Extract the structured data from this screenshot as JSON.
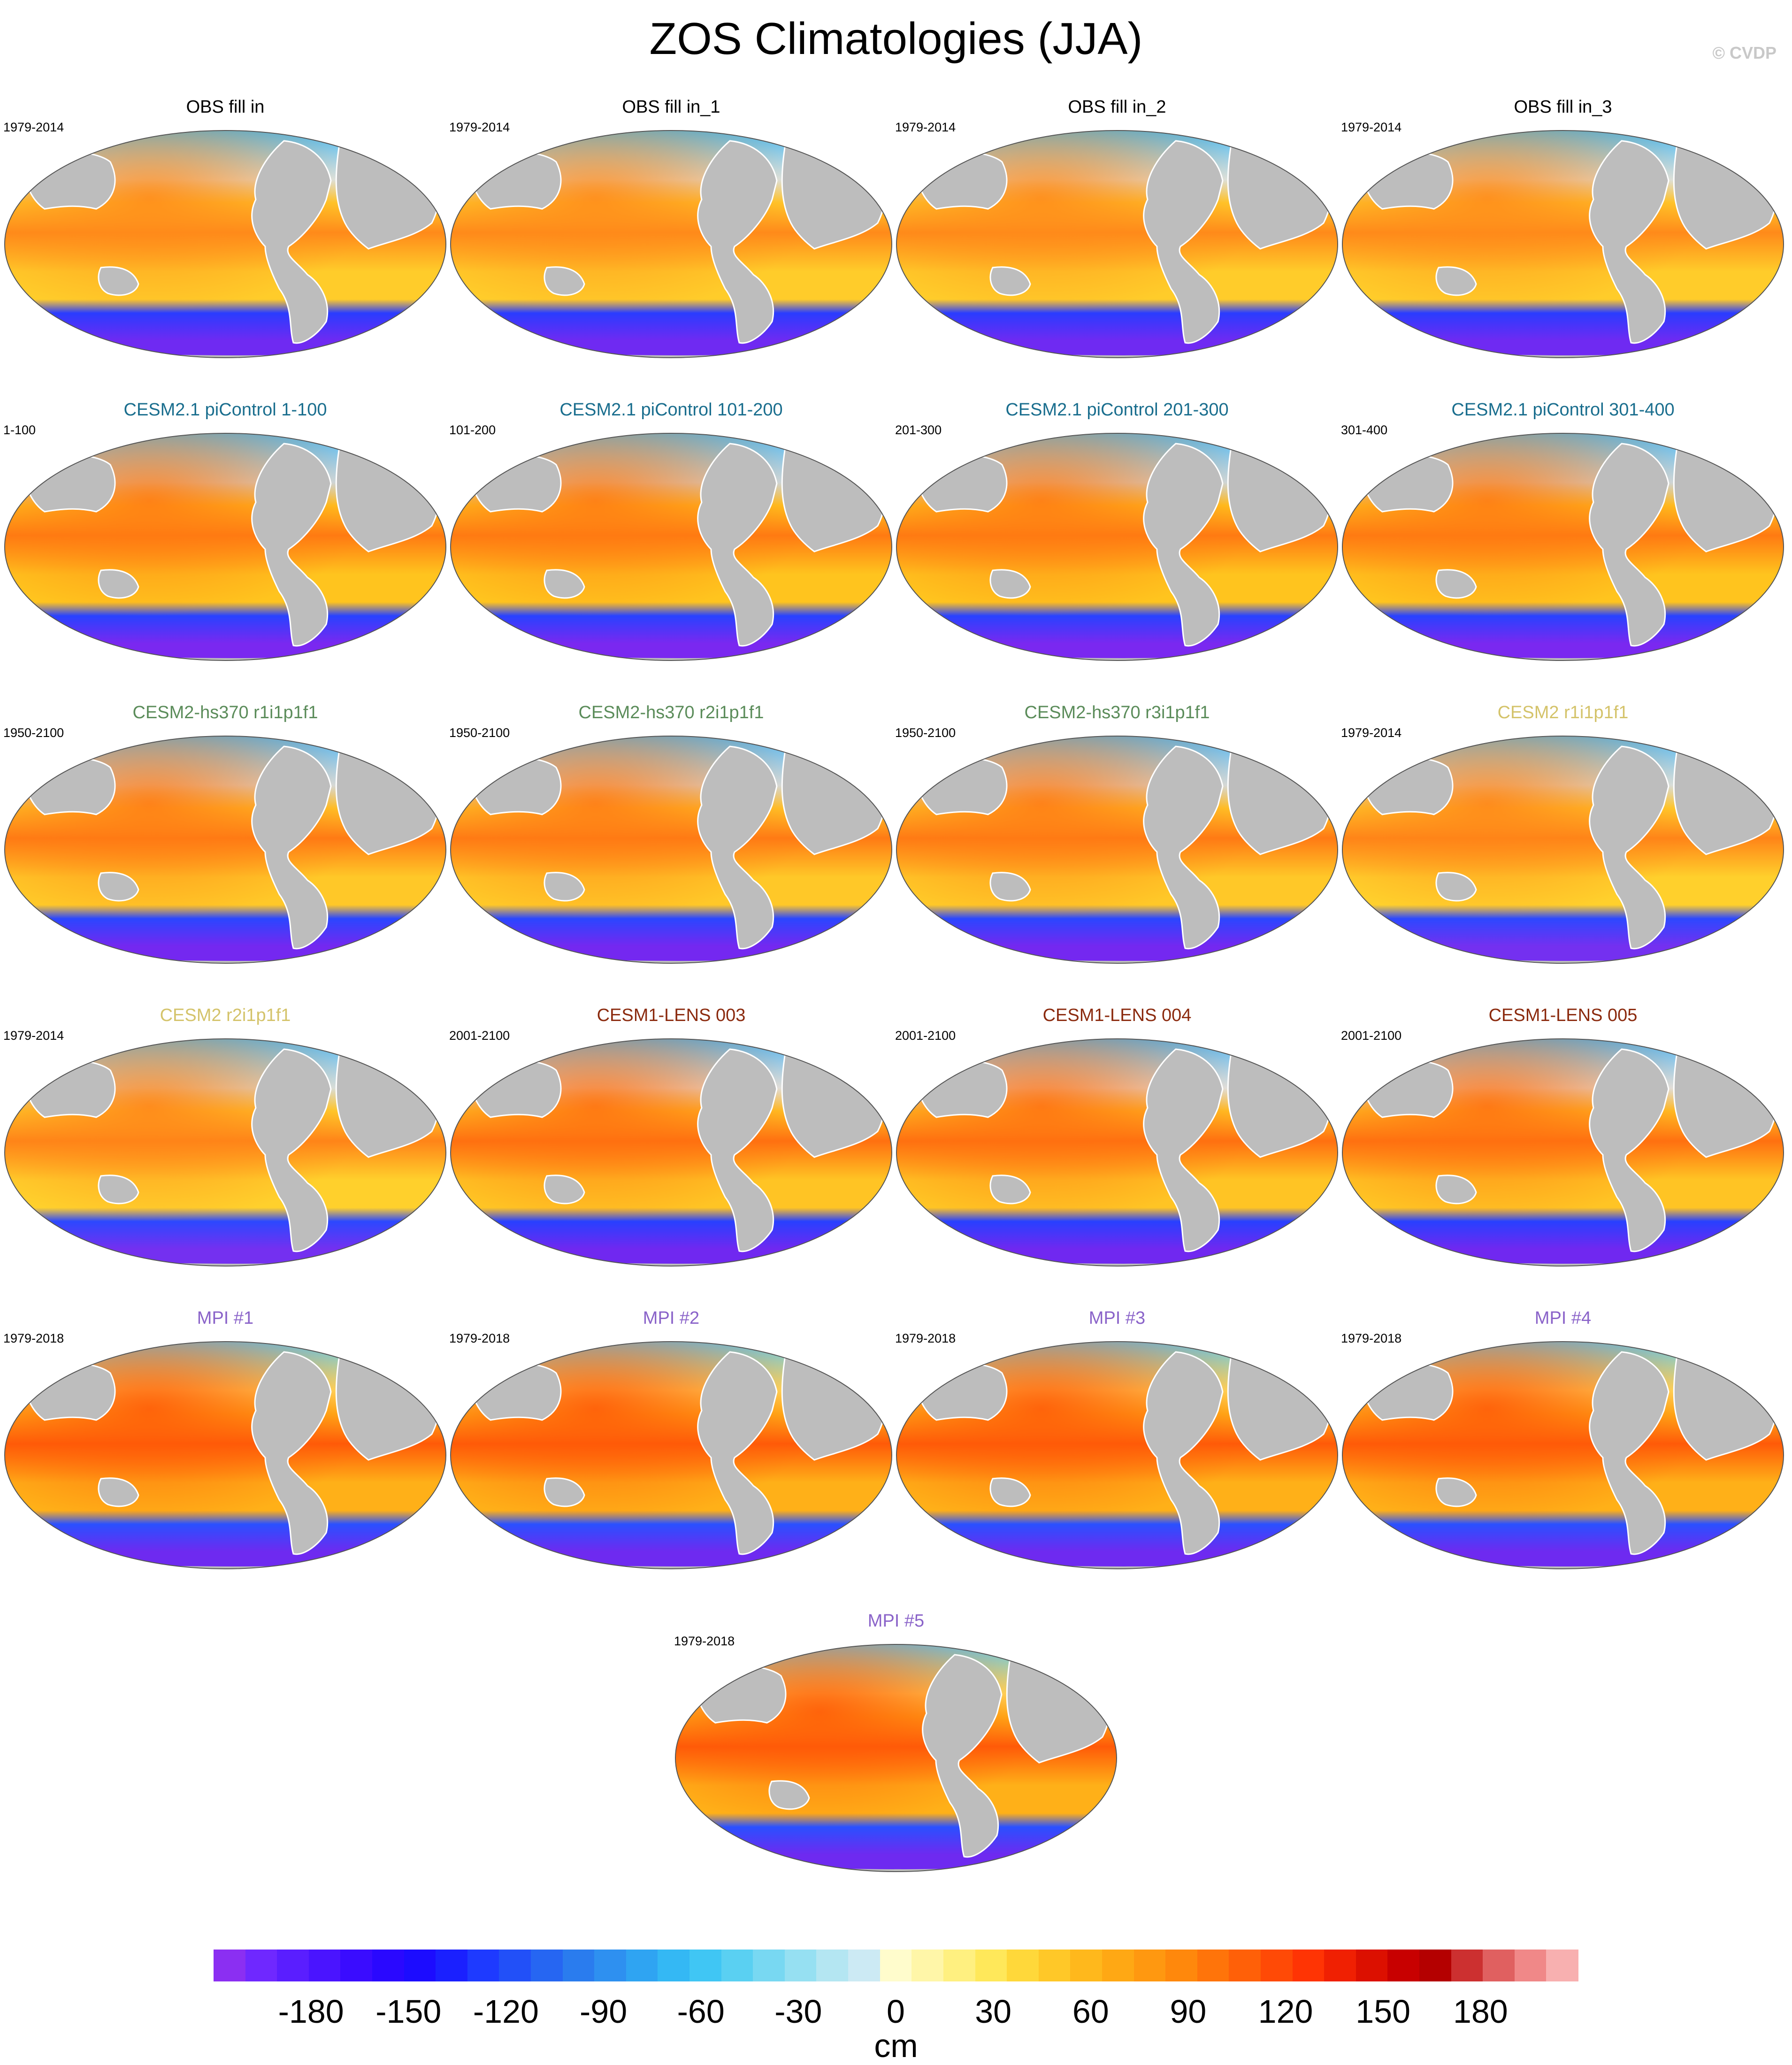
{
  "title": "ZOS Climatologies (JJA)",
  "watermark": "© CVDP",
  "panels": [
    {
      "title": "OBS fill in",
      "period": "1979-2014",
      "title_color": "#000000",
      "variant": "obs"
    },
    {
      "title": "OBS fill in_1",
      "period": "1979-2014",
      "title_color": "#000000",
      "variant": "obs"
    },
    {
      "title": "OBS fill in_2",
      "period": "1979-2014",
      "title_color": "#000000",
      "variant": "obs"
    },
    {
      "title": "OBS fill in_3",
      "period": "1979-2014",
      "title_color": "#000000",
      "variant": "obs"
    },
    {
      "title": "CESM2.1 piControl 1-100",
      "period": "1-100",
      "title_color": "#1a6e8e",
      "variant": "pi"
    },
    {
      "title": "CESM2.1 piControl 101-200",
      "period": "101-200",
      "title_color": "#1a6e8e",
      "variant": "pi"
    },
    {
      "title": "CESM2.1 piControl 201-300",
      "period": "201-300",
      "title_color": "#1a6e8e",
      "variant": "pi"
    },
    {
      "title": "CESM2.1 piControl 301-400",
      "period": "301-400",
      "title_color": "#1a6e8e",
      "variant": "pi"
    },
    {
      "title": "CESM2-hs370 r1i1p1f1",
      "period": "1950-2100",
      "title_color": "#5b8c5a",
      "variant": "hs"
    },
    {
      "title": "CESM2-hs370 r2i1p1f1",
      "period": "1950-2100",
      "title_color": "#5b8c5a",
      "variant": "hs"
    },
    {
      "title": "CESM2-hs370 r3i1p1f1",
      "period": "1950-2100",
      "title_color": "#5b8c5a",
      "variant": "hs"
    },
    {
      "title": "CESM2 r1i1p1f1",
      "period": "1979-2014",
      "title_color": "#d4c36a",
      "variant": "cesm2"
    },
    {
      "title": "CESM2 r2i1p1f1",
      "period": "1979-2014",
      "title_color": "#d4c36a",
      "variant": "cesm2"
    },
    {
      "title": "CESM1-LENS 003",
      "period": "2001-2100",
      "title_color": "#8b2a0e",
      "variant": "lens"
    },
    {
      "title": "CESM1-LENS 004",
      "period": "2001-2100",
      "title_color": "#8b2a0e",
      "variant": "lens"
    },
    {
      "title": "CESM1-LENS 005",
      "period": "2001-2100",
      "title_color": "#8b2a0e",
      "variant": "lens"
    },
    {
      "title": "MPI #1",
      "period": "1979-2018",
      "title_color": "#8a63c9",
      "variant": "mpi"
    },
    {
      "title": "MPI #2",
      "period": "1979-2018",
      "title_color": "#8a63c9",
      "variant": "mpi"
    },
    {
      "title": "MPI #3",
      "period": "1979-2018",
      "title_color": "#8a63c9",
      "variant": "mpi"
    },
    {
      "title": "MPI #4",
      "period": "1979-2018",
      "title_color": "#8a63c9",
      "variant": "mpi"
    },
    {
      "title": "MPI #5",
      "period": "1979-2018",
      "title_color": "#8a63c9",
      "variant": "mpi"
    }
  ],
  "colorbar": {
    "units": "cm",
    "min": -210,
    "max": 210,
    "step": 10,
    "ticks": [
      -180,
      -150,
      -120,
      -90,
      -60,
      -30,
      0,
      30,
      60,
      90,
      120,
      150,
      180
    ],
    "colors": [
      "#8b2ff2",
      "#6f28ff",
      "#5a1eff",
      "#4a14ff",
      "#3a0cff",
      "#2a08ff",
      "#1c0cff",
      "#1a20ff",
      "#1e3aff",
      "#2250f8",
      "#2666f2",
      "#2a7cee",
      "#2e90f0",
      "#2fa4f2",
      "#34b8f4",
      "#40c6f4",
      "#5ad0f2",
      "#78d8f2",
      "#96e0f2",
      "#b4e6f2",
      "#cceaf4",
      "#fffccc",
      "#fff6a8",
      "#fff080",
      "#ffe85a",
      "#ffd83a",
      "#ffc828",
      "#ffb81c",
      "#ffa814",
      "#ff9810",
      "#ff880c",
      "#ff740a",
      "#ff6008",
      "#ff4a06",
      "#ff3404",
      "#f02002",
      "#dc1000",
      "#c80000",
      "#b40000",
      "#cc3030",
      "#e06060",
      "#f08888",
      "#f8b0b0"
    ]
  }
}
